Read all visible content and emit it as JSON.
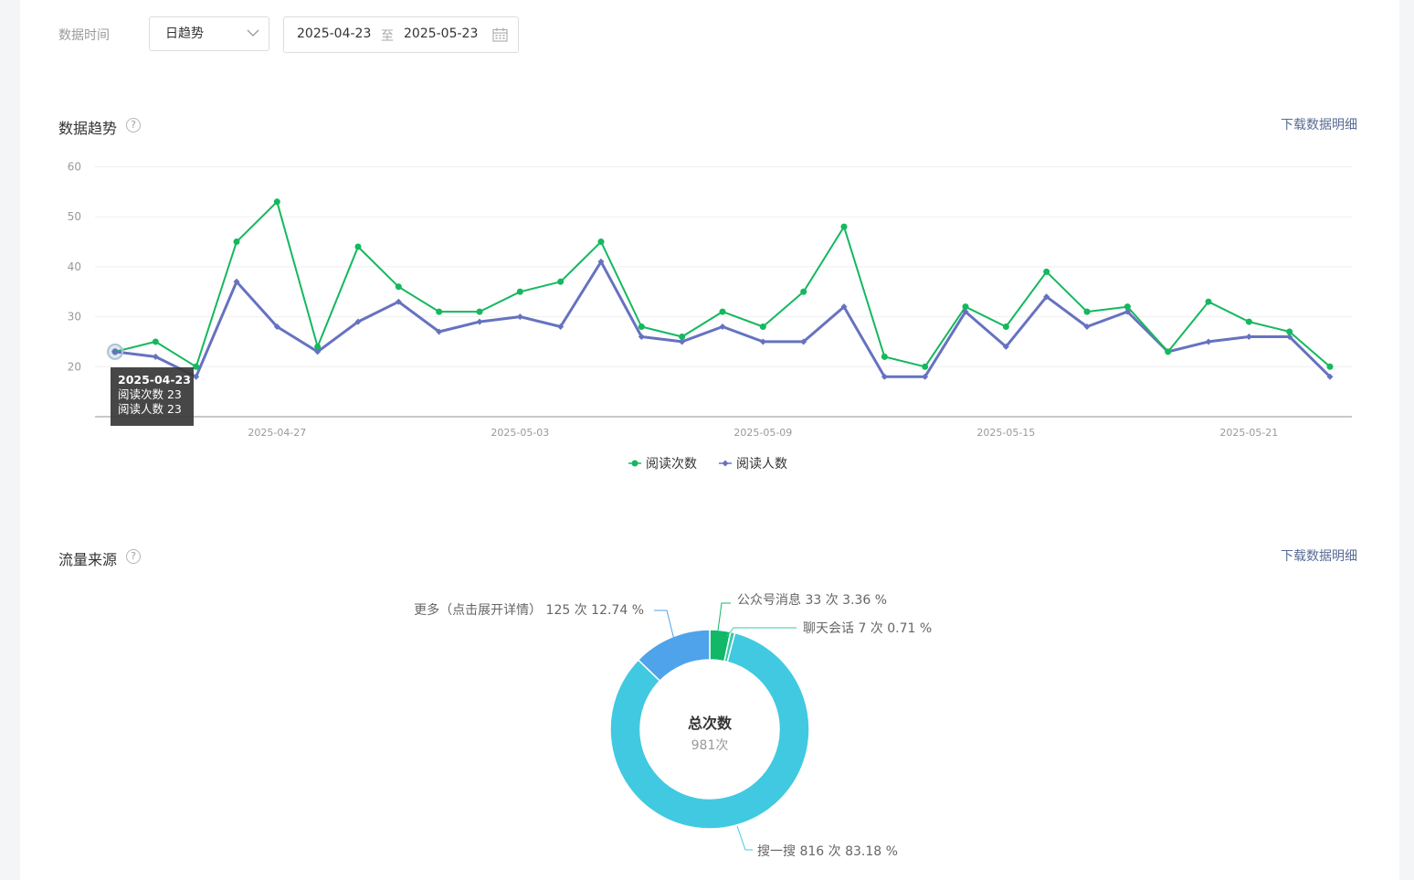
{
  "filter": {
    "label": "数据时间",
    "granularity": "日趋势",
    "start_date": "2025-04-23",
    "separator": "至",
    "end_date": "2025-05-23"
  },
  "trend": {
    "title": "数据趋势",
    "help": "?",
    "download": "下载数据明细"
  },
  "tooltip": {
    "date": "2025-04-23",
    "line1": "阅读次数 23",
    "line2": "阅读人数 23"
  },
  "traffic": {
    "title": "流量来源",
    "help": "?",
    "download": "下载数据明细"
  },
  "colors": {
    "reads": "#14b85e",
    "readers": "#6672c0",
    "pie": [
      "#10b868",
      "#37c9a8",
      "#41c9e1",
      "#4ea3ea"
    ]
  },
  "chart_data": [
    {
      "type": "line",
      "ylim": [
        10,
        60
      ],
      "yticks": [
        20,
        30,
        40,
        50,
        60
      ],
      "grid": true,
      "legend_position": "bottom-center",
      "x": [
        "2025-04-23",
        "2025-04-24",
        "2025-04-25",
        "2025-04-26",
        "2025-04-27",
        "2025-04-28",
        "2025-04-29",
        "2025-04-30",
        "2025-05-01",
        "2025-05-02",
        "2025-05-03",
        "2025-05-04",
        "2025-05-05",
        "2025-05-06",
        "2025-05-07",
        "2025-05-08",
        "2025-05-09",
        "2025-05-10",
        "2025-05-11",
        "2025-05-12",
        "2025-05-13",
        "2025-05-14",
        "2025-05-15",
        "2025-05-16",
        "2025-05-17",
        "2025-05-18",
        "2025-05-19",
        "2025-05-20",
        "2025-05-21",
        "2025-05-22",
        "2025-05-23"
      ],
      "xtick_labels": [
        "2025-04-27",
        "2025-05-03",
        "2025-05-09",
        "2025-05-15",
        "2025-05-21"
      ],
      "series": [
        {
          "name": "阅读次数",
          "values": [
            23,
            25,
            20,
            45,
            53,
            24,
            44,
            36,
            31,
            31,
            35,
            37,
            45,
            28,
            26,
            31,
            28,
            35,
            48,
            22,
            20,
            32,
            28,
            39,
            31,
            32,
            23,
            33,
            29,
            27,
            20
          ]
        },
        {
          "name": "阅读人数",
          "values": [
            23,
            22,
            18,
            37,
            28,
            23,
            29,
            33,
            27,
            29,
            30,
            28,
            41,
            26,
            25,
            28,
            25,
            25,
            32,
            18,
            18,
            31,
            24,
            34,
            28,
            31,
            23,
            25,
            26,
            26,
            18
          ]
        }
      ]
    },
    {
      "type": "pie",
      "center_title": "总次数",
      "center_value": "981次",
      "slices": [
        {
          "name": "公众号消息",
          "value": 33,
          "label": "公众号消息 33 次 3.36 %"
        },
        {
          "name": "聊天会话",
          "value": 7,
          "label": "聊天会话 7 次 0.71 %"
        },
        {
          "name": "搜一搜",
          "value": 816,
          "label": "搜一搜 816 次 83.18 %"
        },
        {
          "name": "更多（点击展开详情）",
          "value": 125,
          "label": "更多（点击展开详情） 125 次 12.74 %"
        }
      ]
    }
  ]
}
